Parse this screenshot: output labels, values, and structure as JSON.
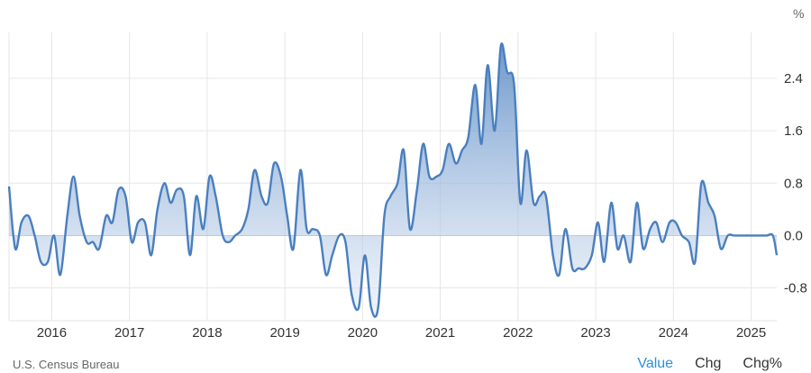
{
  "chart_data": {
    "type": "area",
    "unit": "%",
    "source": "U.S. Census Bureau",
    "xlim": [
      2015.45,
      2025.33
    ],
    "ylim": [
      -1.3,
      3.1
    ],
    "x_ticks": [
      {
        "value": 2016,
        "label": "2016"
      },
      {
        "value": 2017,
        "label": "2017"
      },
      {
        "value": 2018,
        "label": "2018"
      },
      {
        "value": 2019,
        "label": "2019"
      },
      {
        "value": 2020,
        "label": "2020"
      },
      {
        "value": 2021,
        "label": "2021"
      },
      {
        "value": 2022,
        "label": "2022"
      },
      {
        "value": 2023,
        "label": "2023"
      },
      {
        "value": 2024,
        "label": "2024"
      },
      {
        "value": 2025,
        "label": "2025"
      }
    ],
    "y_ticks": [
      {
        "value": 2.4,
        "label": "2.4"
      },
      {
        "value": 1.6,
        "label": "1.6"
      },
      {
        "value": 0.8,
        "label": "0.8"
      },
      {
        "value": 0.0,
        "label": "0.0"
      },
      {
        "value": -0.8,
        "label": "-0.8"
      }
    ],
    "grid": true,
    "colors": {
      "line": "#4a7fbf",
      "fill_top": "#4a7fbf",
      "fill_bottom": "#dfe8f5",
      "grid": "#e6e6e6",
      "zero_line": "#c8c8c8"
    },
    "x": [
      2015.45,
      2015.53,
      2015.61,
      2015.7,
      2015.78,
      2015.86,
      2015.95,
      2016.03,
      2016.11,
      2016.2,
      2016.28,
      2016.36,
      2016.45,
      2016.53,
      2016.61,
      2016.7,
      2016.78,
      2016.86,
      2016.95,
      2017.03,
      2017.11,
      2017.2,
      2017.28,
      2017.36,
      2017.45,
      2017.53,
      2017.61,
      2017.7,
      2017.78,
      2017.86,
      2017.95,
      2018.03,
      2018.11,
      2018.2,
      2018.28,
      2018.36,
      2018.45,
      2018.53,
      2018.61,
      2018.7,
      2018.78,
      2018.86,
      2018.95,
      2019.03,
      2019.11,
      2019.2,
      2019.28,
      2019.36,
      2019.45,
      2019.53,
      2019.61,
      2019.7,
      2019.78,
      2019.86,
      2019.95,
      2020.03,
      2020.11,
      2020.2,
      2020.28,
      2020.36,
      2020.45,
      2020.53,
      2020.61,
      2020.7,
      2020.78,
      2020.86,
      2020.95,
      2021.03,
      2021.11,
      2021.2,
      2021.28,
      2021.36,
      2021.45,
      2021.53,
      2021.61,
      2021.7,
      2021.78,
      2021.86,
      2021.95,
      2022.03,
      2022.11,
      2022.2,
      2022.28,
      2022.36,
      2022.45,
      2022.53,
      2022.61,
      2022.7,
      2022.78,
      2022.86,
      2022.95,
      2023.03,
      2023.11,
      2023.2,
      2023.28,
      2023.36,
      2023.45,
      2023.53,
      2023.61,
      2023.7,
      2023.78,
      2023.86,
      2023.95,
      2024.03,
      2024.11,
      2024.2,
      2024.28,
      2024.36,
      2024.45,
      2024.53,
      2024.61,
      2024.7,
      2024.78,
      2024.86,
      2024.95,
      2025.03,
      2025.11,
      2025.2,
      2025.28,
      2025.33
    ],
    "values": [
      0.75,
      -0.2,
      0.2,
      0.3,
      0.0,
      -0.4,
      -0.4,
      0.0,
      -0.6,
      0.3,
      0.9,
      0.3,
      -0.1,
      -0.1,
      -0.2,
      0.3,
      0.2,
      0.7,
      0.6,
      -0.1,
      0.2,
      0.2,
      -0.3,
      0.4,
      0.8,
      0.5,
      0.7,
      0.6,
      -0.3,
      0.6,
      0.1,
      0.9,
      0.6,
      0.0,
      -0.1,
      0.0,
      0.1,
      0.4,
      1.0,
      0.6,
      0.5,
      1.1,
      0.9,
      0.3,
      -0.2,
      1.0,
      0.1,
      0.1,
      0.0,
      -0.6,
      -0.3,
      0.0,
      -0.1,
      -0.9,
      -1.1,
      -0.3,
      -1.1,
      -1.1,
      0.3,
      0.6,
      0.8,
      1.3,
      0.1,
      0.7,
      1.4,
      0.9,
      0.9,
      1.0,
      1.4,
      1.1,
      1.3,
      1.5,
      2.3,
      1.4,
      2.6,
      1.6,
      2.9,
      2.5,
      2.3,
      0.5,
      1.3,
      0.5,
      0.6,
      0.6,
      -0.3,
      -0.6,
      0.1,
      -0.5,
      -0.5,
      -0.5,
      -0.3,
      0.2,
      -0.4,
      0.5,
      -0.2,
      0.0,
      -0.4,
      0.5,
      -0.2,
      0.1,
      0.2,
      -0.1,
      0.2,
      0.2,
      0.0,
      -0.1,
      -0.4,
      0.8,
      0.5,
      0.3,
      -0.2,
      0.0,
      0.0,
      0.0,
      0.0,
      0.0,
      0.0,
      0.0,
      0.0,
      -0.3
    ]
  },
  "tabs": [
    {
      "label": "Value",
      "active": true
    },
    {
      "label": "Chg",
      "active": false
    },
    {
      "label": "Chg%",
      "active": false
    }
  ]
}
